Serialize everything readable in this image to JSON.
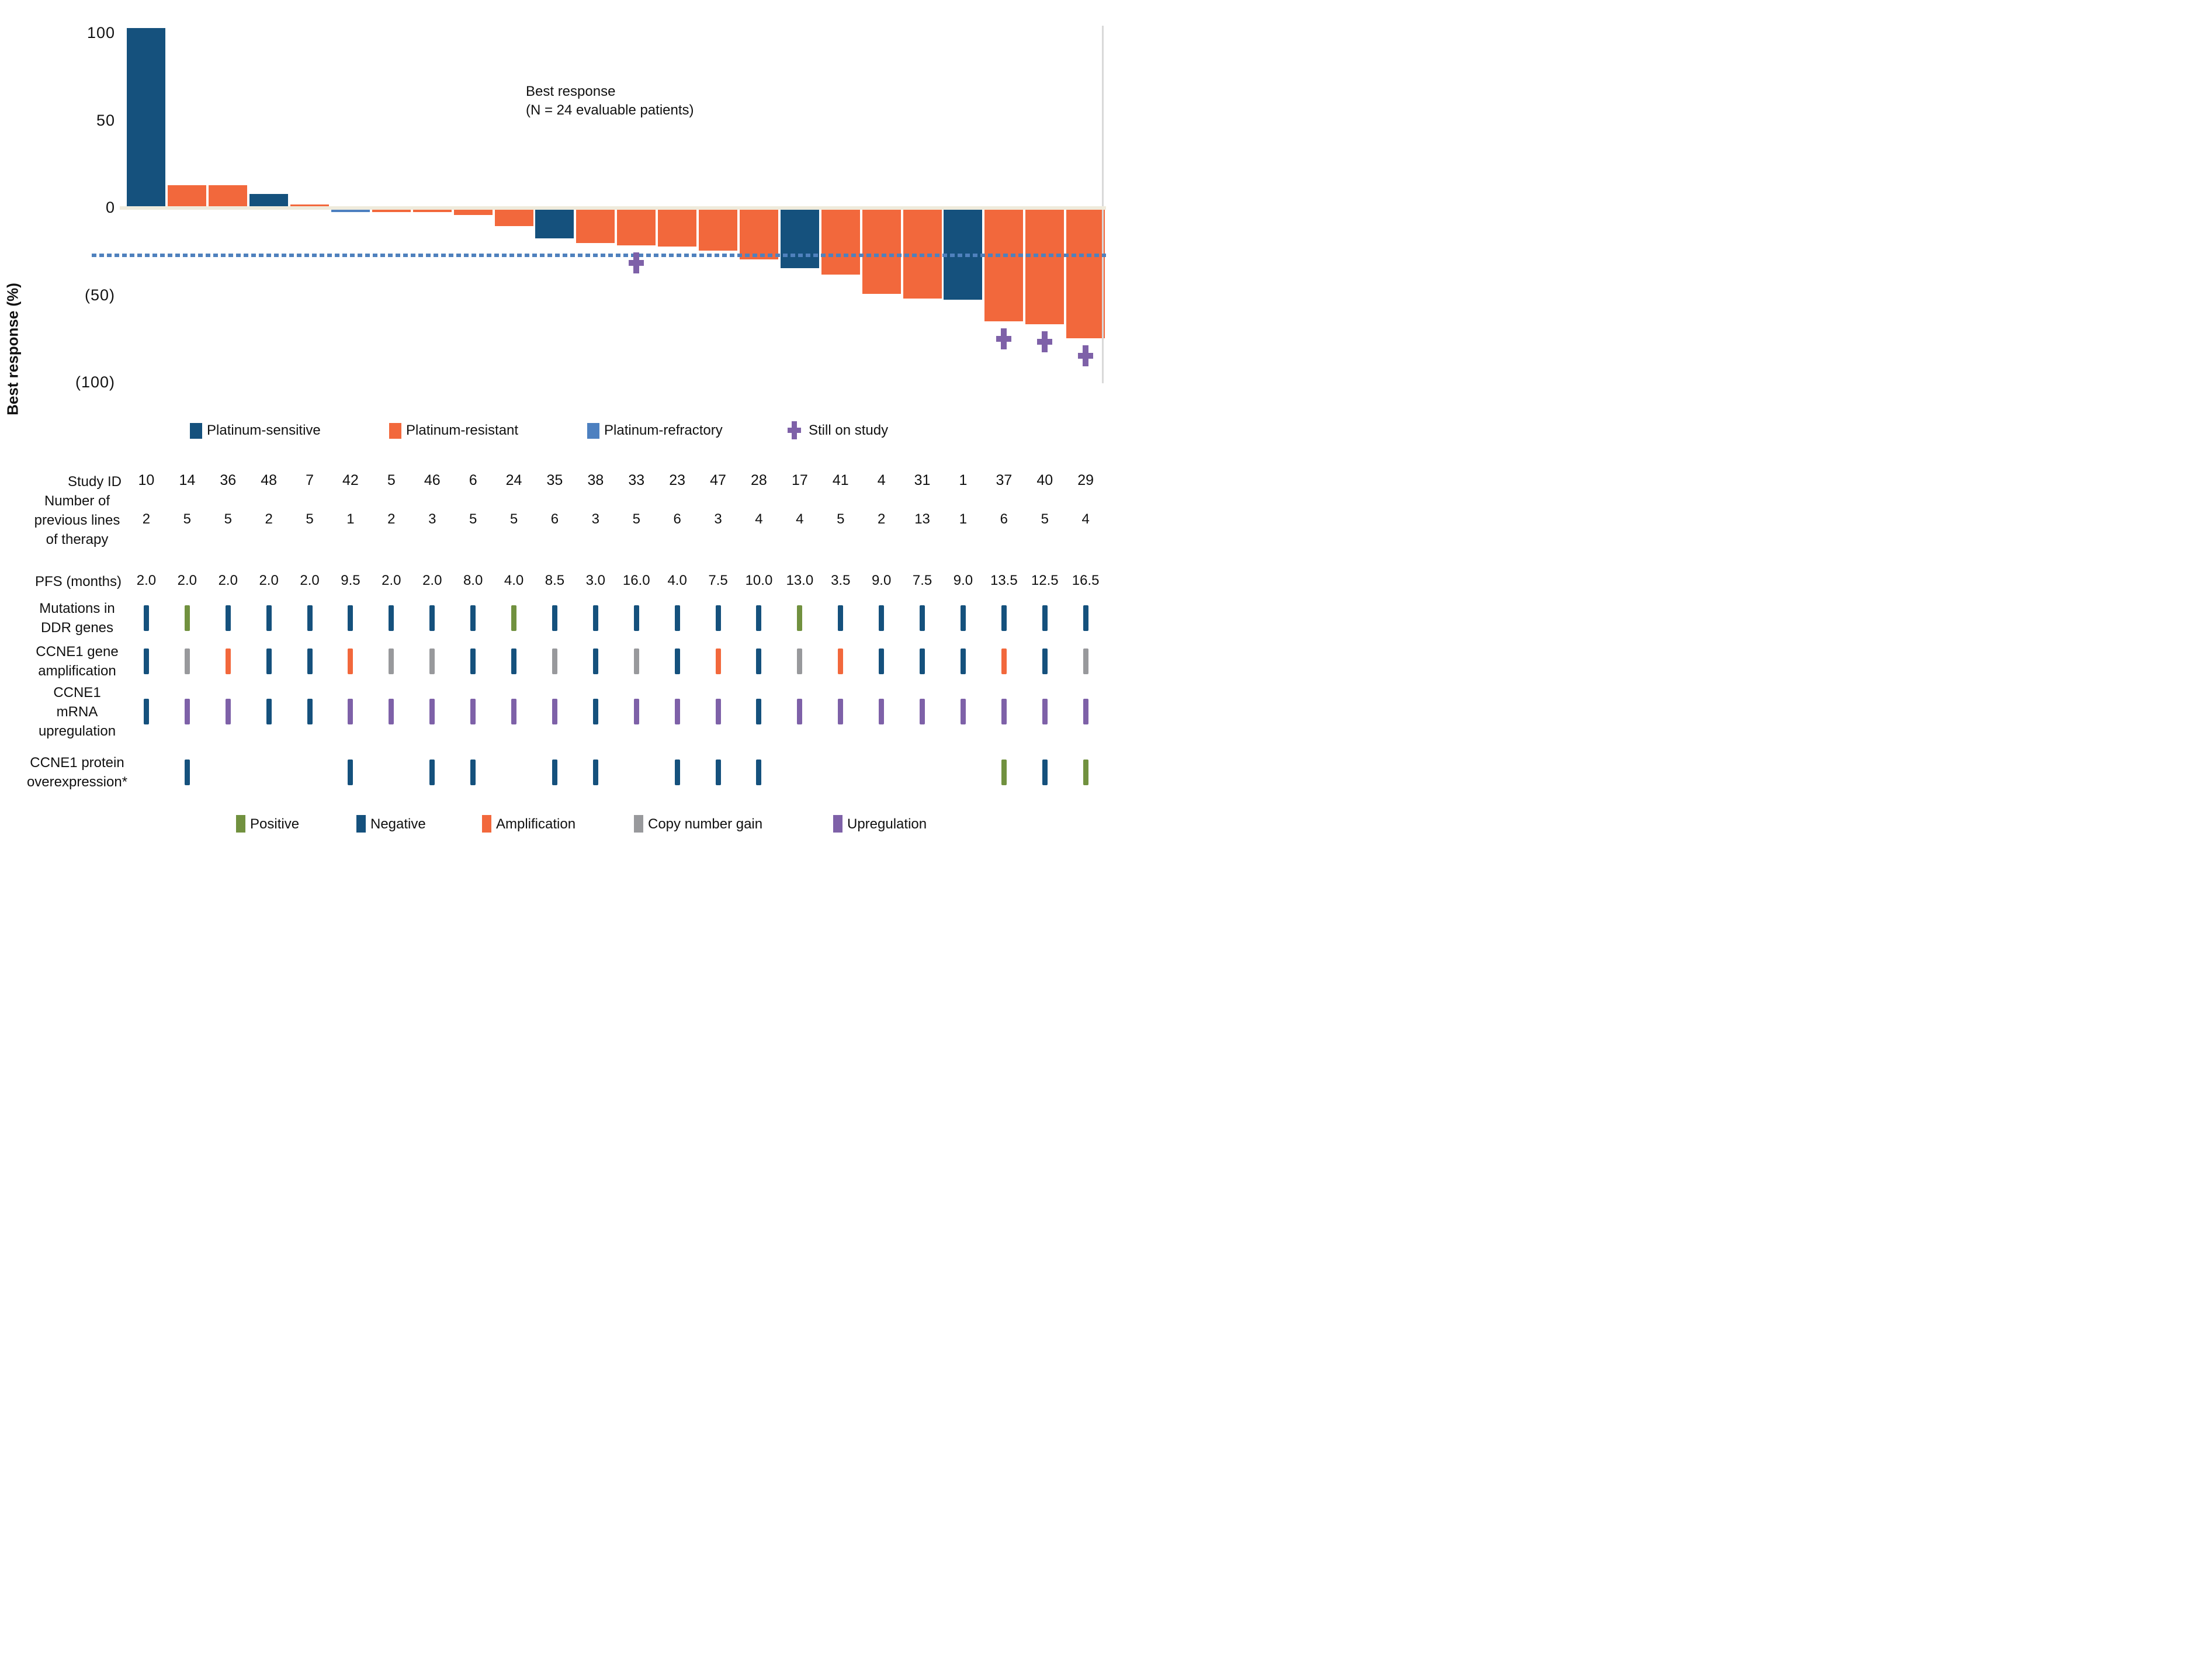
{
  "figure": {
    "title_line1": "Best response",
    "title_line2": "(N = 24 evaluable patients)",
    "y_axis_label": "Best response (%)"
  },
  "chart_data": {
    "type": "bar",
    "title": "Best response (N = 24 evaluable patients)",
    "xlabel": "Study ID",
    "ylabel": "Best response (%)",
    "ylim": [
      -100,
      105
    ],
    "grid": false,
    "y_ticks": [
      {
        "value": 100,
        "label": "100"
      },
      {
        "value": 50,
        "label": "50"
      },
      {
        "value": 0,
        "label": "0"
      },
      {
        "value": -50,
        "label": "(50)"
      },
      {
        "value": -100,
        "label": "(100)"
      }
    ],
    "dashed_reference_line_percent": -26,
    "categories": [
      "10",
      "14",
      "36",
      "48",
      "7",
      "42",
      "5",
      "46",
      "6",
      "24",
      "35",
      "38",
      "33",
      "23",
      "47",
      "28",
      "17",
      "41",
      "4",
      "31",
      "1",
      "37",
      "40",
      "29"
    ],
    "series": [
      {
        "name": "Best response (%)",
        "values": [
          103,
          13,
          13,
          8,
          2,
          -2.5,
          -2.5,
          -2.5,
          -4,
          -10.5,
          -17.5,
          -20,
          -21.5,
          -22,
          -24.5,
          -29.5,
          -34.5,
          -38,
          -49,
          -52,
          -52.5,
          -65,
          -66.5,
          -74.5
        ]
      }
    ],
    "patients": [
      {
        "study_id": "10",
        "best_response_pct": 103,
        "platinum_status": "sensitive",
        "previous_lines": "2",
        "pfs_months": "2.0",
        "ddr_genes": "neg",
        "ccne1_amplification": "neg",
        "ccne1_mrna": "neg",
        "ccne1_protein": null,
        "still_on_study": false
      },
      {
        "study_id": "14",
        "best_response_pct": 13,
        "platinum_status": "resistant",
        "previous_lines": "5",
        "pfs_months": "2.0",
        "ddr_genes": "pos",
        "ccne1_amplification": "gain",
        "ccne1_mrna": "up",
        "ccne1_protein": "neg",
        "still_on_study": false
      },
      {
        "study_id": "36",
        "best_response_pct": 13,
        "platinum_status": "resistant",
        "previous_lines": "5",
        "pfs_months": "2.0",
        "ddr_genes": "neg",
        "ccne1_amplification": "amp",
        "ccne1_mrna": "up",
        "ccne1_protein": null,
        "still_on_study": false
      },
      {
        "study_id": "48",
        "best_response_pct": 8,
        "platinum_status": "sensitive",
        "previous_lines": "2",
        "pfs_months": "2.0",
        "ddr_genes": "neg",
        "ccne1_amplification": "neg",
        "ccne1_mrna": "neg",
        "ccne1_protein": null,
        "still_on_study": false
      },
      {
        "study_id": "7",
        "best_response_pct": 2,
        "platinum_status": "resistant",
        "previous_lines": "5",
        "pfs_months": "2.0",
        "ddr_genes": "neg",
        "ccne1_amplification": "neg",
        "ccne1_mrna": "neg",
        "ccne1_protein": null,
        "still_on_study": false
      },
      {
        "study_id": "42",
        "best_response_pct": -2.5,
        "platinum_status": "refractory",
        "previous_lines": "1",
        "pfs_months": "9.5",
        "ddr_genes": "neg",
        "ccne1_amplification": "amp",
        "ccne1_mrna": "up",
        "ccne1_protein": "neg",
        "still_on_study": false
      },
      {
        "study_id": "5",
        "best_response_pct": -2.5,
        "platinum_status": "resistant",
        "previous_lines": "2",
        "pfs_months": "2.0",
        "ddr_genes": "neg",
        "ccne1_amplification": "gain",
        "ccne1_mrna": "up",
        "ccne1_protein": null,
        "still_on_study": false
      },
      {
        "study_id": "46",
        "best_response_pct": -2.5,
        "platinum_status": "resistant",
        "previous_lines": "3",
        "pfs_months": "2.0",
        "ddr_genes": "neg",
        "ccne1_amplification": "gain",
        "ccne1_mrna": "up",
        "ccne1_protein": "neg",
        "still_on_study": false
      },
      {
        "study_id": "6",
        "best_response_pct": -4,
        "platinum_status": "resistant",
        "previous_lines": "5",
        "pfs_months": "8.0",
        "ddr_genes": "neg",
        "ccne1_amplification": "neg",
        "ccne1_mrna": "up",
        "ccne1_protein": "neg",
        "still_on_study": false
      },
      {
        "study_id": "24",
        "best_response_pct": -10.5,
        "platinum_status": "resistant",
        "previous_lines": "5",
        "pfs_months": "4.0",
        "ddr_genes": "pos",
        "ccne1_amplification": "neg",
        "ccne1_mrna": "up",
        "ccne1_protein": null,
        "still_on_study": false
      },
      {
        "study_id": "35",
        "best_response_pct": -17.5,
        "platinum_status": "sensitive",
        "previous_lines": "6",
        "pfs_months": "8.5",
        "ddr_genes": "neg",
        "ccne1_amplification": "gain",
        "ccne1_mrna": "up",
        "ccne1_protein": "neg",
        "still_on_study": false
      },
      {
        "study_id": "38",
        "best_response_pct": -20,
        "platinum_status": "resistant",
        "previous_lines": "3",
        "pfs_months": "3.0",
        "ddr_genes": "neg",
        "ccne1_amplification": "neg",
        "ccne1_mrna": "neg",
        "ccne1_protein": "neg",
        "still_on_study": false
      },
      {
        "study_id": "33",
        "best_response_pct": -21.5,
        "platinum_status": "resistant",
        "previous_lines": "5",
        "pfs_months": "16.0",
        "ddr_genes": "neg",
        "ccne1_amplification": "gain",
        "ccne1_mrna": "up",
        "ccne1_protein": null,
        "still_on_study": true
      },
      {
        "study_id": "23",
        "best_response_pct": -22,
        "platinum_status": "resistant",
        "previous_lines": "6",
        "pfs_months": "4.0",
        "ddr_genes": "neg",
        "ccne1_amplification": "neg",
        "ccne1_mrna": "up",
        "ccne1_protein": "neg",
        "still_on_study": false
      },
      {
        "study_id": "47",
        "best_response_pct": -24.5,
        "platinum_status": "resistant",
        "previous_lines": "3",
        "pfs_months": "7.5",
        "ddr_genes": "neg",
        "ccne1_amplification": "amp",
        "ccne1_mrna": "up",
        "ccne1_protein": "neg",
        "still_on_study": false
      },
      {
        "study_id": "28",
        "best_response_pct": -29.5,
        "platinum_status": "resistant",
        "previous_lines": "4",
        "pfs_months": "10.0",
        "ddr_genes": "neg",
        "ccne1_amplification": "neg",
        "ccne1_mrna": "neg",
        "ccne1_protein": "neg",
        "still_on_study": false
      },
      {
        "study_id": "17",
        "best_response_pct": -34.5,
        "platinum_status": "sensitive",
        "previous_lines": "4",
        "pfs_months": "13.0",
        "ddr_genes": "pos",
        "ccne1_amplification": "gain",
        "ccne1_mrna": "up",
        "ccne1_protein": null,
        "still_on_study": false
      },
      {
        "study_id": "41",
        "best_response_pct": -38,
        "platinum_status": "resistant",
        "previous_lines": "5",
        "pfs_months": "3.5",
        "ddr_genes": "neg",
        "ccne1_amplification": "amp",
        "ccne1_mrna": "up",
        "ccne1_protein": null,
        "still_on_study": false
      },
      {
        "study_id": "4",
        "best_response_pct": -49,
        "platinum_status": "resistant",
        "previous_lines": "2",
        "pfs_months": "9.0",
        "ddr_genes": "neg",
        "ccne1_amplification": "neg",
        "ccne1_mrna": "up",
        "ccne1_protein": null,
        "still_on_study": false
      },
      {
        "study_id": "31",
        "best_response_pct": -52,
        "platinum_status": "resistant",
        "previous_lines": "13",
        "pfs_months": "7.5",
        "ddr_genes": "neg",
        "ccne1_amplification": "neg",
        "ccne1_mrna": "up",
        "ccne1_protein": null,
        "still_on_study": false
      },
      {
        "study_id": "1",
        "best_response_pct": -52.5,
        "platinum_status": "sensitive",
        "previous_lines": "1",
        "pfs_months": "9.0",
        "ddr_genes": "neg",
        "ccne1_amplification": "neg",
        "ccne1_mrna": "up",
        "ccne1_protein": null,
        "still_on_study": false
      },
      {
        "study_id": "37",
        "best_response_pct": -65,
        "platinum_status": "resistant",
        "previous_lines": "6",
        "pfs_months": "13.5",
        "ddr_genes": "neg",
        "ccne1_amplification": "amp",
        "ccne1_mrna": "up",
        "ccne1_protein": "pos",
        "still_on_study": true
      },
      {
        "study_id": "40",
        "best_response_pct": -66.5,
        "platinum_status": "resistant",
        "previous_lines": "5",
        "pfs_months": "12.5",
        "ddr_genes": "neg",
        "ccne1_amplification": "neg",
        "ccne1_mrna": "up",
        "ccne1_protein": "neg",
        "still_on_study": true
      },
      {
        "study_id": "29",
        "best_response_pct": -74.5,
        "platinum_status": "resistant",
        "previous_lines": "4",
        "pfs_months": "16.5",
        "ddr_genes": "neg",
        "ccne1_amplification": "gain",
        "ccne1_mrna": "up",
        "ccne1_protein": "pos",
        "still_on_study": true
      }
    ]
  },
  "status_legend": {
    "items": [
      {
        "key": "sensitive",
        "label": "Platinum-sensitive",
        "shape": "square"
      },
      {
        "key": "resistant",
        "label": "Platinum-resistant",
        "shape": "square"
      },
      {
        "key": "refractory",
        "label": "Platinum-refractory",
        "shape": "square"
      },
      {
        "key": "on_study",
        "label": "Still on study",
        "shape": "plus"
      }
    ]
  },
  "marker_legend": {
    "items": [
      {
        "key": "pos",
        "label": "Positive"
      },
      {
        "key": "neg",
        "label": "Negative"
      },
      {
        "key": "amp",
        "label": "Amplification"
      },
      {
        "key": "gain",
        "label": "Copy number gain"
      },
      {
        "key": "up",
        "label": "Upregulation"
      }
    ]
  },
  "table": {
    "row_headers": {
      "study_id": [
        "Study ID"
      ],
      "previous_lines": [
        "Number of",
        "previous lines",
        "of therapy"
      ],
      "pfs_months": [
        "PFS (months)"
      ],
      "ddr_genes": [
        "Mutations in",
        "DDR genes"
      ],
      "ccne1_amplification": [
        "CCNE1 gene",
        "amplification"
      ],
      "ccne1_mrna": [
        "CCNE1",
        "mRNA",
        "upregulation"
      ],
      "ccne1_protein": [
        "CCNE1 protein",
        "overexpression*"
      ]
    }
  },
  "colors": {
    "sensitive": "#15517d",
    "resistant": "#f2683c",
    "refractory": "#4d80c0",
    "on_study": "#7e61a8",
    "pos": "#71913f",
    "neg": "#15517d",
    "amp": "#f2683c",
    "gain": "#98999c",
    "up": "#7e61a8",
    "dashed_line": "#4f81bd",
    "zero_axis": "#efebdc",
    "plot_right_border": "#d9d9d9",
    "text": "#111111"
  }
}
